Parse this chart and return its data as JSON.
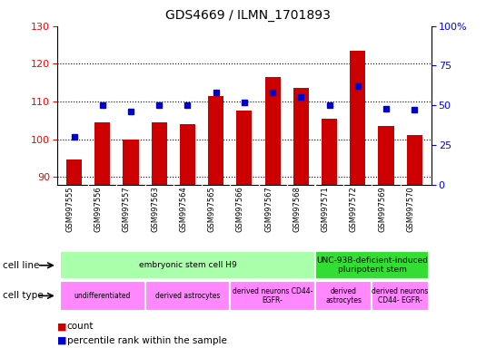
{
  "title": "GDS4669 / ILMN_1701893",
  "samples": [
    "GSM997555",
    "GSM997556",
    "GSM997557",
    "GSM997563",
    "GSM997564",
    "GSM997565",
    "GSM997566",
    "GSM997567",
    "GSM997568",
    "GSM997571",
    "GSM997572",
    "GSM997569",
    "GSM997570"
  ],
  "counts": [
    94.5,
    104.5,
    100.0,
    104.5,
    104.0,
    111.5,
    107.5,
    116.5,
    113.5,
    105.5,
    123.5,
    103.5,
    101.0
  ],
  "percentile_ranks": [
    30,
    50,
    46,
    50,
    50,
    58,
    52,
    58,
    55,
    50,
    62,
    48,
    47
  ],
  "ylim_left": [
    88,
    130
  ],
  "ylim_right": [
    0,
    100
  ],
  "left_yticks": [
    90,
    100,
    110,
    120,
    130
  ],
  "right_ytick_labels": [
    "0",
    "25",
    "50",
    "75",
    "100%"
  ],
  "right_ytick_vals": [
    0,
    25,
    50,
    75,
    100
  ],
  "bar_color": "#cc0000",
  "dot_color": "#0000cc",
  "bar_bottom": 88,
  "cell_line_groups": [
    {
      "label": "embryonic stem cell H9",
      "start": 0,
      "end": 9,
      "color": "#aaffaa"
    },
    {
      "label": "UNC-93B-deficient-induced\npluripotent stem",
      "start": 9,
      "end": 13,
      "color": "#33dd33"
    }
  ],
  "cell_type_groups": [
    {
      "label": "undifferentiated",
      "start": 0,
      "end": 3,
      "color": "#ff88ff"
    },
    {
      "label": "derived astrocytes",
      "start": 3,
      "end": 6,
      "color": "#ff88ff"
    },
    {
      "label": "derived neurons CD44-\nEGFR-",
      "start": 6,
      "end": 9,
      "color": "#ff88ff"
    },
    {
      "label": "derived\nastrocytes",
      "start": 9,
      "end": 11,
      "color": "#ff88ff"
    },
    {
      "label": "derived neurons\nCD44- EGFR-",
      "start": 11,
      "end": 13,
      "color": "#ff88ff"
    }
  ],
  "legend_count_color": "#cc0000",
  "legend_dot_color": "#0000cc",
  "fig_width": 5.46,
  "fig_height": 3.84,
  "dpi": 100
}
